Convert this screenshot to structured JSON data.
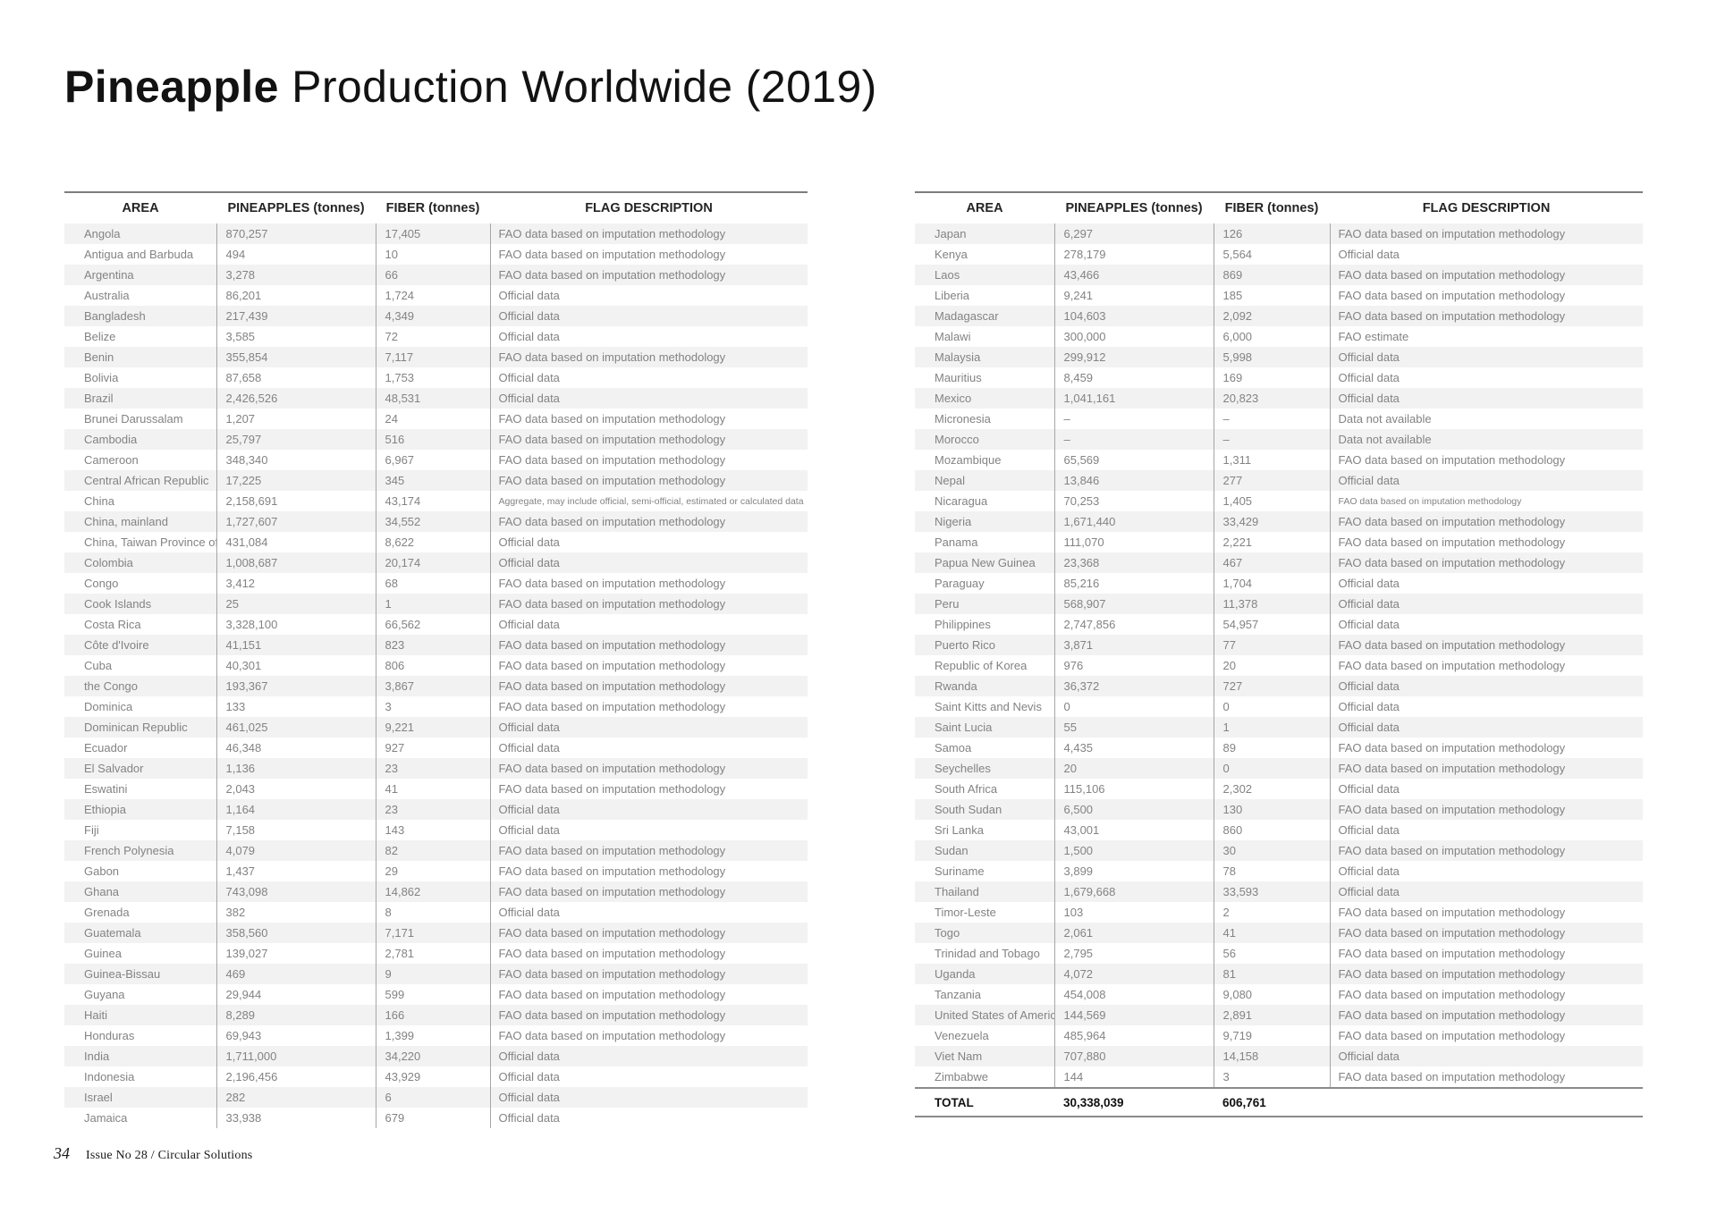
{
  "title": {
    "bold": "Pineapple",
    "rest": " Production Worldwide (2019)"
  },
  "columns": [
    "AREA",
    "PINEAPPLES (tonnes)",
    "FIBER (tonnes)",
    "FLAG DESCRIPTION"
  ],
  "left_table": {
    "rows": [
      [
        "Angola",
        "870,257",
        "17,405",
        "FAO data based on imputation methodology"
      ],
      [
        "Antigua and Barbuda",
        "494",
        "10",
        "FAO data based on imputation methodology"
      ],
      [
        "Argentina",
        "3,278",
        "66",
        "FAO data based on imputation methodology"
      ],
      [
        "Australia",
        "86,201",
        "1,724",
        "Official data"
      ],
      [
        "Bangladesh",
        "217,439",
        "4,349",
        "Official data"
      ],
      [
        "Belize",
        "3,585",
        "72",
        "Official data"
      ],
      [
        "Benin",
        "355,854",
        "7,117",
        "FAO data based on imputation methodology"
      ],
      [
        "Bolivia",
        "87,658",
        "1,753",
        "Official data"
      ],
      [
        "Brazil",
        "2,426,526",
        "48,531",
        "Official data"
      ],
      [
        "Brunei Darussalam",
        "1,207",
        "24",
        "FAO data based on imputation methodology"
      ],
      [
        "Cambodia",
        "25,797",
        "516",
        "FAO data based on imputation methodology"
      ],
      [
        "Cameroon",
        "348,340",
        "6,967",
        "FAO data based on imputation methodology"
      ],
      [
        "Central African Republic",
        "17,225",
        "345",
        "FAO data based on imputation methodology"
      ],
      [
        "China",
        "2,158,691",
        "43,174",
        "Aggregate, may include official, semi-official, estimated or calculated data",
        true
      ],
      [
        "China, mainland",
        "1,727,607",
        "34,552",
        "FAO data based on imputation methodology"
      ],
      [
        "China, Taiwan Province of",
        "431,084",
        "8,622",
        "Official data"
      ],
      [
        "Colombia",
        "1,008,687",
        "20,174",
        "Official data"
      ],
      [
        "Congo",
        "3,412",
        "68",
        "FAO data based on imputation methodology"
      ],
      [
        "Cook Islands",
        "25",
        "1",
        "FAO data based on imputation methodology"
      ],
      [
        "Costa Rica",
        "3,328,100",
        "66,562",
        "Official data"
      ],
      [
        "Côte d'Ivoire",
        "41,151",
        "823",
        "FAO data based on imputation methodology"
      ],
      [
        "Cuba",
        "40,301",
        "806",
        "FAO data based on imputation methodology"
      ],
      [
        "the Congo",
        "193,367",
        "3,867",
        "FAO data based on imputation methodology"
      ],
      [
        "Dominica",
        "133",
        "3",
        "FAO data based on imputation methodology"
      ],
      [
        "Dominican Republic",
        "461,025",
        "9,221",
        "Official data"
      ],
      [
        "Ecuador",
        "46,348",
        "927",
        "Official data"
      ],
      [
        "El Salvador",
        "1,136",
        "23",
        "FAO data based on imputation methodology"
      ],
      [
        "Eswatini",
        "2,043",
        "41",
        "FAO data based on imputation methodology"
      ],
      [
        "Ethiopia",
        "1,164",
        "23",
        "Official data"
      ],
      [
        "Fiji",
        "7,158",
        "143",
        "Official data"
      ],
      [
        "French Polynesia",
        "4,079",
        "82",
        "FAO data based on imputation methodology"
      ],
      [
        "Gabon",
        "1,437",
        "29",
        "FAO data based on imputation methodology"
      ],
      [
        "Ghana",
        "743,098",
        "14,862",
        "FAO data based on imputation methodology"
      ],
      [
        "Grenada",
        "382",
        "8",
        "Official data"
      ],
      [
        "Guatemala",
        "358,560",
        "7,171",
        "FAO data based on imputation methodology"
      ],
      [
        "Guinea",
        "139,027",
        "2,781",
        "FAO data based on imputation methodology"
      ],
      [
        "Guinea-Bissau",
        "469",
        "9",
        "FAO data based on imputation methodology"
      ],
      [
        "Guyana",
        "29,944",
        "599",
        "FAO data based on imputation methodology"
      ],
      [
        "Haiti",
        "8,289",
        "166",
        "FAO data based on imputation methodology"
      ],
      [
        "Honduras",
        "69,943",
        "1,399",
        "FAO data based on imputation methodology"
      ],
      [
        "India",
        "1,711,000",
        "34,220",
        "Official data"
      ],
      [
        "Indonesia",
        "2,196,456",
        "43,929",
        "Official data"
      ],
      [
        "Israel",
        "282",
        "6",
        "Official data"
      ],
      [
        "Jamaica",
        "33,938",
        "679",
        "Official data"
      ]
    ]
  },
  "right_table": {
    "rows": [
      [
        "Japan",
        "6,297",
        "126",
        "FAO data based on imputation methodology"
      ],
      [
        "Kenya",
        "278,179",
        "5,564",
        "Official data"
      ],
      [
        "Laos",
        "43,466",
        "869",
        "FAO data based on imputation methodology"
      ],
      [
        "Liberia",
        "9,241",
        "185",
        "FAO data based on imputation methodology"
      ],
      [
        "Madagascar",
        "104,603",
        "2,092",
        "FAO data based on imputation methodology"
      ],
      [
        "Malawi",
        "300,000",
        "6,000",
        "FAO estimate"
      ],
      [
        "Malaysia",
        "299,912",
        "5,998",
        "Official data"
      ],
      [
        "Mauritius",
        "8,459",
        "169",
        "Official data"
      ],
      [
        "Mexico",
        "1,041,161",
        "20,823",
        "Official data"
      ],
      [
        "Micronesia",
        "–",
        "–",
        "Data not available"
      ],
      [
        "Morocco",
        "–",
        "–",
        "Data not available"
      ],
      [
        "Mozambique",
        "65,569",
        "1,311",
        "FAO data based on imputation methodology"
      ],
      [
        "Nepal",
        "13,846",
        "277",
        "Official data"
      ],
      [
        "Nicaragua",
        "70,253",
        "1,405",
        "FAO data based on imputation methodology",
        true
      ],
      [
        "Nigeria",
        "1,671,440",
        "33,429",
        "FAO data based on imputation methodology"
      ],
      [
        "Panama",
        "111,070",
        "2,221",
        "FAO data based on imputation methodology"
      ],
      [
        "Papua New Guinea",
        "23,368",
        "467",
        "FAO data based on imputation methodology"
      ],
      [
        "Paraguay",
        "85,216",
        "1,704",
        "Official data"
      ],
      [
        "Peru",
        "568,907",
        "11,378",
        "Official data"
      ],
      [
        "Philippines",
        "2,747,856",
        "54,957",
        "Official data"
      ],
      [
        "Puerto Rico",
        "3,871",
        "77",
        "FAO data based on imputation methodology"
      ],
      [
        "Republic of Korea",
        "976",
        "20",
        "FAO data based on imputation methodology"
      ],
      [
        "Rwanda",
        "36,372",
        "727",
        "Official data"
      ],
      [
        "Saint Kitts and Nevis",
        "0",
        "0",
        "Official data"
      ],
      [
        "Saint Lucia",
        "55",
        "1",
        "Official data"
      ],
      [
        "Samoa",
        "4,435",
        "89",
        "FAO data based on imputation methodology"
      ],
      [
        "Seychelles",
        "20",
        "0",
        "FAO data based on imputation methodology"
      ],
      [
        "South Africa",
        "115,106",
        "2,302",
        "Official data"
      ],
      [
        "South Sudan",
        "6,500",
        "130",
        "FAO data based on imputation methodology"
      ],
      [
        "Sri Lanka",
        "43,001",
        "860",
        "Official data"
      ],
      [
        "Sudan",
        "1,500",
        "30",
        "FAO data based on imputation methodology"
      ],
      [
        "Suriname",
        "3,899",
        "78",
        "Official data"
      ],
      [
        "Thailand",
        "1,679,668",
        "33,593",
        "Official data"
      ],
      [
        "Timor-Leste",
        "103",
        "2",
        "FAO data based on imputation methodology"
      ],
      [
        "Togo",
        "2,061",
        "41",
        "FAO data based on imputation methodology"
      ],
      [
        "Trinidad and Tobago",
        "2,795",
        "56",
        "FAO data based on imputation methodology"
      ],
      [
        "Uganda",
        "4,072",
        "81",
        "FAO data based on imputation methodology"
      ],
      [
        "Tanzania",
        "454,008",
        "9,080",
        "FAO data based on imputation methodology"
      ],
      [
        "United States of America",
        "144,569",
        "2,891",
        "FAO data based on imputation methodology"
      ],
      [
        "Venezuela",
        "485,964",
        "9,719",
        "FAO data based on imputation methodology"
      ],
      [
        "Viet Nam",
        "707,880",
        "14,158",
        "Official data"
      ],
      [
        "Zimbabwe",
        "144",
        "3",
        "FAO data based on imputation methodology"
      ]
    ],
    "total": {
      "label": "TOTAL",
      "pineapples": "30,338,039",
      "fiber": "606,761"
    }
  },
  "footer": {
    "page": "34",
    "text": "Issue No 28 / Circular Solutions"
  },
  "colors": {
    "stripe": "#f2f2f2",
    "cell_text": "#838383",
    "heading_text": "#242424",
    "rule": "#7d7d7d",
    "divider": "#a6a6a6"
  }
}
